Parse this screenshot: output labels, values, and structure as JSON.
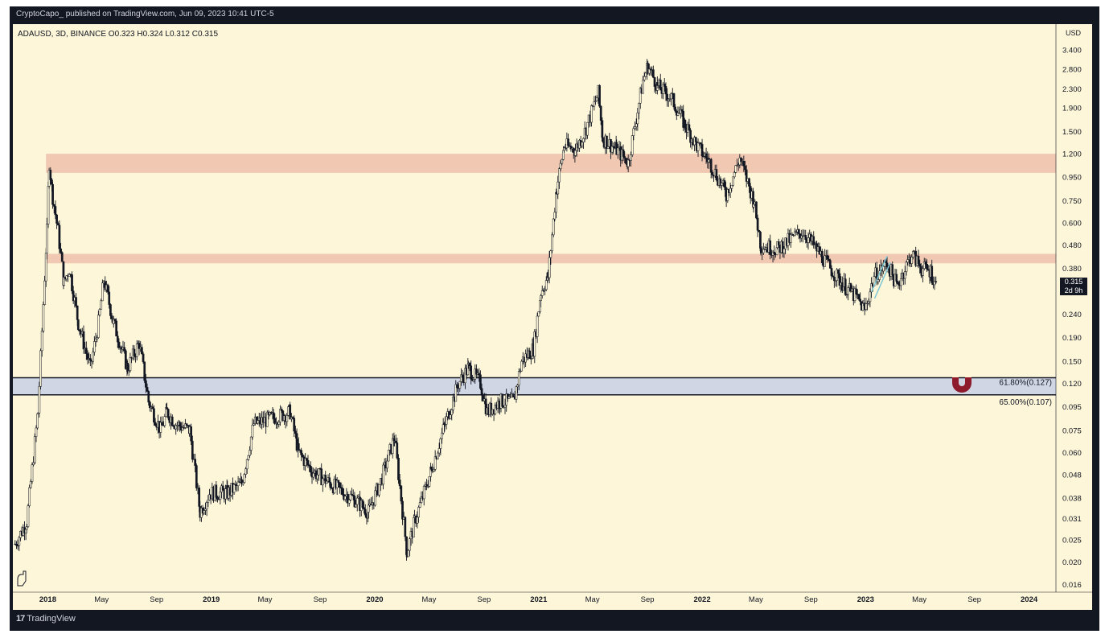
{
  "header": {
    "published_by": "CryptoCapo_ published on TradingView.com, Jun 09, 2023 10:41 UTC-5"
  },
  "symbol": {
    "line": "ADAUSD, 3D, BINANCE  O0.323  H0.324  L0.312  C0.315"
  },
  "price_badge": {
    "price": "0.315",
    "countdown": "2d 9h"
  },
  "footer": {
    "logo_mark": "17",
    "brand": "TradingView"
  },
  "colors": {
    "background": "#fdf6d9",
    "frame": "#131722",
    "candles": "#131722",
    "resistance_zone": "#eebfaa",
    "fib_zone": "#ccd3e6",
    "fib_line": "#131722",
    "channel": "#7ec8d6",
    "magnet_icon": "#8e1b2c"
  },
  "icons": [
    "magnet-icon",
    "ruler-icon",
    "tradingview-logo-icon"
  ],
  "chart_data": {
    "type": "candlestick",
    "title": "",
    "ylabel": "USD",
    "yscale": "log",
    "ylim": [
      0.0148,
      4.4
    ],
    "xlim": [
      "2017-10-15",
      "2024-03-01"
    ],
    "grid": false,
    "y_ticks": [
      "3.400",
      "2.800",
      "2.300",
      "1.900",
      "1.500",
      "1.200",
      "0.950",
      "0.750",
      "0.600",
      "0.480",
      "0.380",
      "0.315",
      "0.240",
      "0.190",
      "0.150",
      "0.120",
      "0.095",
      "0.075",
      "0.060",
      "0.048",
      "0.038",
      "0.031",
      "0.025",
      "0.020",
      "0.016"
    ],
    "x_ticks": [
      {
        "label": "2018",
        "date": "2018-01-01",
        "bold": true
      },
      {
        "label": "May",
        "date": "2018-05-01",
        "bold": false
      },
      {
        "label": "Sep",
        "date": "2018-09-01",
        "bold": false
      },
      {
        "label": "2019",
        "date": "2019-01-01",
        "bold": true
      },
      {
        "label": "May",
        "date": "2019-05-01",
        "bold": false
      },
      {
        "label": "Sep",
        "date": "2019-09-01",
        "bold": false
      },
      {
        "label": "2020",
        "date": "2020-01-01",
        "bold": true
      },
      {
        "label": "May",
        "date": "2020-05-01",
        "bold": false
      },
      {
        "label": "Sep",
        "date": "2020-09-01",
        "bold": false
      },
      {
        "label": "2021",
        "date": "2021-01-01",
        "bold": true
      },
      {
        "label": "May",
        "date": "2021-05-01",
        "bold": false
      },
      {
        "label": "Sep",
        "date": "2021-09-01",
        "bold": false
      },
      {
        "label": "2022",
        "date": "2022-01-01",
        "bold": true
      },
      {
        "label": "May",
        "date": "2022-05-01",
        "bold": false
      },
      {
        "label": "Sep",
        "date": "2022-09-01",
        "bold": false
      },
      {
        "label": "2023",
        "date": "2023-01-01",
        "bold": true
      },
      {
        "label": "May",
        "date": "2023-05-01",
        "bold": false
      },
      {
        "label": "Sep",
        "date": "2023-09-01",
        "bold": false
      },
      {
        "label": "2024",
        "date": "2024-01-01",
        "bold": true
      }
    ],
    "series_path": [
      [
        "2017-10-20",
        0.024
      ],
      [
        "2017-11-15",
        0.03
      ],
      [
        "2017-12-10",
        0.09
      ],
      [
        "2017-12-30",
        0.55
      ],
      [
        "2018-01-04",
        1.1
      ],
      [
        "2018-01-12",
        0.78
      ],
      [
        "2018-01-24",
        0.55
      ],
      [
        "2018-02-06",
        0.33
      ],
      [
        "2018-02-18",
        0.38
      ],
      [
        "2018-03-10",
        0.22
      ],
      [
        "2018-04-06",
        0.14
      ],
      [
        "2018-04-24",
        0.22
      ],
      [
        "2018-05-06",
        0.34
      ],
      [
        "2018-05-28",
        0.22
      ],
      [
        "2018-06-28",
        0.14
      ],
      [
        "2018-07-24",
        0.18
      ],
      [
        "2018-08-14",
        0.1
      ],
      [
        "2018-09-10",
        0.075
      ],
      [
        "2018-09-24",
        0.09
      ],
      [
        "2018-10-14",
        0.08
      ],
      [
        "2018-11-14",
        0.075
      ],
      [
        "2018-12-07",
        0.033
      ],
      [
        "2018-12-28",
        0.04
      ],
      [
        "2019-02-06",
        0.04
      ],
      [
        "2019-03-10",
        0.044
      ],
      [
        "2019-04-06",
        0.08
      ],
      [
        "2019-05-20",
        0.085
      ],
      [
        "2019-06-26",
        0.09
      ],
      [
        "2019-07-15",
        0.06
      ],
      [
        "2019-08-14",
        0.05
      ],
      [
        "2019-09-24",
        0.044
      ],
      [
        "2019-10-24",
        0.04
      ],
      [
        "2019-11-14",
        0.038
      ],
      [
        "2019-12-18",
        0.033
      ],
      [
        "2020-01-14",
        0.045
      ],
      [
        "2020-02-14",
        0.07
      ],
      [
        "2020-03-13",
        0.022
      ],
      [
        "2020-03-30",
        0.03
      ],
      [
        "2020-05-06",
        0.05
      ],
      [
        "2020-06-06",
        0.08
      ],
      [
        "2020-07-06",
        0.12
      ],
      [
        "2020-07-28",
        0.14
      ],
      [
        "2020-08-24",
        0.12
      ],
      [
        "2020-09-08",
        0.09
      ],
      [
        "2020-10-06",
        0.1
      ],
      [
        "2020-11-06",
        0.1
      ],
      [
        "2020-11-24",
        0.15
      ],
      [
        "2020-12-20",
        0.17
      ],
      [
        "2021-01-06",
        0.3
      ],
      [
        "2021-01-22",
        0.35
      ],
      [
        "2021-02-10",
        0.85
      ],
      [
        "2021-02-27",
        1.3
      ],
      [
        "2021-03-24",
        1.25
      ],
      [
        "2021-04-14",
        1.5
      ],
      [
        "2021-05-14",
        2.2
      ],
      [
        "2021-05-24",
        1.4
      ],
      [
        "2021-06-24",
        1.25
      ],
      [
        "2021-07-20",
        1.1
      ],
      [
        "2021-08-22",
        2.5
      ],
      [
        "2021-09-02",
        2.9
      ],
      [
        "2021-09-24",
        2.35
      ],
      [
        "2021-10-24",
        2.1
      ],
      [
        "2021-11-24",
        1.6
      ],
      [
        "2021-12-20",
        1.3
      ],
      [
        "2022-01-18",
        1.1
      ],
      [
        "2022-02-24",
        0.8
      ],
      [
        "2022-03-26",
        1.15
      ],
      [
        "2022-04-26",
        0.75
      ],
      [
        "2022-05-12",
        0.48
      ],
      [
        "2022-06-18",
        0.46
      ],
      [
        "2022-07-24",
        0.52
      ],
      [
        "2022-08-14",
        0.55
      ],
      [
        "2022-09-14",
        0.46
      ],
      [
        "2022-10-14",
        0.38
      ],
      [
        "2022-11-14",
        0.32
      ],
      [
        "2022-12-14",
        0.28
      ],
      [
        "2022-12-30",
        0.25
      ],
      [
        "2023-01-20",
        0.35
      ],
      [
        "2023-02-18",
        0.4
      ],
      [
        "2023-03-12",
        0.32
      ],
      [
        "2023-04-14",
        0.44
      ],
      [
        "2023-05-06",
        0.38
      ],
      [
        "2023-05-26",
        0.37
      ],
      [
        "2023-06-08",
        0.315
      ]
    ],
    "zones": [
      {
        "name": "upper-resistance",
        "low": 0.99,
        "high": 1.2
      },
      {
        "name": "lower-resistance",
        "low": 0.4,
        "high": 0.44
      }
    ],
    "fib_levels": [
      {
        "label": "61.80%(0.127)",
        "value": 0.127
      },
      {
        "label": "65.00%(0.107)",
        "value": 0.107
      }
    ],
    "channel": {
      "from": [
        "2023-01-14",
        0.3
      ],
      "to": [
        "2023-02-18",
        0.43
      ]
    },
    "last_price": 0.315
  }
}
